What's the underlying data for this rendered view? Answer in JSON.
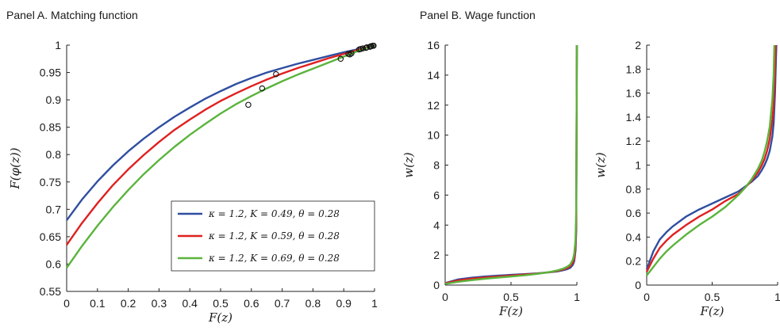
{
  "panels": {
    "a": {
      "title": "Panel A. Matching function"
    },
    "b": {
      "title": "Panel B. Wage function"
    }
  },
  "chart_data": [
    {
      "type": "line",
      "title": "Panel A. Matching function",
      "xlabel": "F(z)",
      "ylabel": "F(φ(z))",
      "xlim": [
        0,
        1
      ],
      "ylim": [
        0.55,
        1.0
      ],
      "xticks": [
        "0",
        "0.1",
        "0.2",
        "0.3",
        "0.4",
        "0.5",
        "0.6",
        "0.7",
        "0.8",
        "0.9",
        "1"
      ],
      "yticks": [
        "0.55",
        "0.6",
        "0.65",
        "0.7",
        "0.75",
        "0.8",
        "0.85",
        "0.9",
        "0.95",
        "1"
      ],
      "legend_position": "lower-right",
      "series": [
        {
          "name": "κ = 1.2, K = 0.49, θ = 0.28",
          "color": "#2f4ea0",
          "x": [
            0,
            0.05,
            0.1,
            0.15,
            0.2,
            0.25,
            0.3,
            0.35,
            0.4,
            0.45,
            0.5,
            0.55,
            0.6,
            0.65,
            0.7,
            0.75,
            0.8,
            0.85,
            0.9,
            0.95,
            1.0
          ],
          "y": [
            0.68,
            0.718,
            0.751,
            0.78,
            0.806,
            0.829,
            0.85,
            0.869,
            0.886,
            0.902,
            0.916,
            0.929,
            0.94,
            0.95,
            0.958,
            0.966,
            0.973,
            0.98,
            0.987,
            0.993,
            1.0
          ],
          "markers": [
            {
              "x": 0.68,
              "y": 0.947
            },
            {
              "x": 0.925,
              "y": 0.985
            },
            {
              "x": 0.955,
              "y": 0.993
            },
            {
              "x": 0.975,
              "y": 0.996
            },
            {
              "x": 0.99,
              "y": 0.998
            },
            {
              "x": 0.997,
              "y": 0.999
            }
          ]
        },
        {
          "name": "κ = 1.2, K = 0.59, θ = 0.28",
          "color": "#e02020",
          "x": [
            0,
            0.05,
            0.1,
            0.15,
            0.2,
            0.25,
            0.3,
            0.35,
            0.4,
            0.45,
            0.5,
            0.55,
            0.6,
            0.65,
            0.7,
            0.75,
            0.8,
            0.85,
            0.9,
            0.95,
            1.0
          ],
          "y": [
            0.635,
            0.675,
            0.711,
            0.744,
            0.773,
            0.799,
            0.823,
            0.845,
            0.864,
            0.882,
            0.898,
            0.912,
            0.925,
            0.937,
            0.948,
            0.958,
            0.967,
            0.976,
            0.984,
            0.992,
            1.0
          ],
          "markers": [
            {
              "x": 0.635,
              "y": 0.921
            },
            {
              "x": 0.915,
              "y": 0.984
            },
            {
              "x": 0.95,
              "y": 0.992
            },
            {
              "x": 0.972,
              "y": 0.995
            },
            {
              "x": 0.988,
              "y": 0.998
            },
            {
              "x": 0.996,
              "y": 0.999
            }
          ]
        },
        {
          "name": "κ = 1.2, K = 0.69, θ = 0.28",
          "color": "#5ab43c",
          "x": [
            0,
            0.05,
            0.1,
            0.15,
            0.2,
            0.25,
            0.3,
            0.35,
            0.4,
            0.45,
            0.5,
            0.55,
            0.6,
            0.65,
            0.7,
            0.75,
            0.8,
            0.85,
            0.9,
            0.95,
            1.0
          ],
          "y": [
            0.593,
            0.633,
            0.67,
            0.704,
            0.735,
            0.764,
            0.79,
            0.814,
            0.836,
            0.856,
            0.875,
            0.892,
            0.907,
            0.921,
            0.934,
            0.946,
            0.957,
            0.968,
            0.979,
            0.99,
            1.0
          ],
          "markers": [
            {
              "x": 0.59,
              "y": 0.891
            },
            {
              "x": 0.89,
              "y": 0.975
            },
            {
              "x": 0.92,
              "y": 0.983
            },
            {
              "x": 0.962,
              "y": 0.994
            },
            {
              "x": 0.985,
              "y": 0.997
            },
            {
              "x": 0.995,
              "y": 0.999
            }
          ]
        }
      ]
    },
    {
      "type": "line",
      "title": "Panel B. Wage function",
      "xlabel": "F(z)",
      "ylabel": "w(z)",
      "xlim": [
        0,
        1
      ],
      "ylim": [
        0,
        16
      ],
      "xticks": [
        "0",
        "0.5",
        "1"
      ],
      "yticks": [
        "0",
        "2",
        "4",
        "6",
        "8",
        "10",
        "12",
        "14",
        "16"
      ],
      "series": [
        {
          "color": "#2f4ea0",
          "x": [
            0,
            0.1,
            0.2,
            0.3,
            0.4,
            0.5,
            0.6,
            0.7,
            0.8,
            0.85,
            0.9,
            0.93,
            0.95,
            0.97,
            0.98,
            0.99,
            0.995,
            1.0
          ],
          "y": [
            0.13,
            0.38,
            0.49,
            0.57,
            0.63,
            0.68,
            0.73,
            0.78,
            0.86,
            0.91,
            1.0,
            1.07,
            1.15,
            1.35,
            1.6,
            2.3,
            3.6,
            16
          ]
        },
        {
          "color": "#e02020",
          "x": [
            0,
            0.1,
            0.2,
            0.3,
            0.4,
            0.5,
            0.6,
            0.7,
            0.8,
            0.85,
            0.9,
            0.93,
            0.95,
            0.97,
            0.98,
            0.99,
            0.995,
            1.0
          ],
          "y": [
            0.11,
            0.31,
            0.42,
            0.5,
            0.57,
            0.63,
            0.7,
            0.76,
            0.87,
            0.94,
            1.05,
            1.15,
            1.26,
            1.5,
            1.8,
            2.6,
            4.2,
            16
          ]
        },
        {
          "color": "#5ab43c",
          "x": [
            0,
            0.1,
            0.2,
            0.3,
            0.4,
            0.5,
            0.6,
            0.7,
            0.8,
            0.85,
            0.9,
            0.93,
            0.95,
            0.97,
            0.98,
            0.99,
            0.995,
            1.0
          ],
          "y": [
            0.08,
            0.22,
            0.33,
            0.42,
            0.5,
            0.57,
            0.65,
            0.75,
            0.88,
            0.97,
            1.11,
            1.24,
            1.38,
            1.7,
            2.1,
            3.0,
            5.0,
            16
          ]
        }
      ]
    },
    {
      "type": "line",
      "title": "",
      "xlabel": "F(z)",
      "ylabel": "w(z)",
      "xlim": [
        0,
        1
      ],
      "ylim": [
        0,
        2
      ],
      "xticks": [
        "0",
        "0.5",
        "1"
      ],
      "yticks": [
        "0",
        "0.2",
        "0.4",
        "0.6",
        "0.8",
        "1",
        "1.2",
        "1.4",
        "1.6",
        "1.8",
        "2"
      ],
      "series": [
        {
          "color": "#2f4ea0",
          "x": [
            0,
            0.05,
            0.1,
            0.15,
            0.2,
            0.3,
            0.4,
            0.5,
            0.6,
            0.7,
            0.75,
            0.8,
            0.85,
            0.88,
            0.9,
            0.92,
            0.94,
            0.96,
            0.97,
            0.98,
            0.99
          ],
          "y": [
            0.13,
            0.28,
            0.38,
            0.44,
            0.49,
            0.57,
            0.63,
            0.68,
            0.73,
            0.78,
            0.82,
            0.86,
            0.91,
            0.96,
            1.0,
            1.05,
            1.12,
            1.24,
            1.35,
            1.6,
            2.0
          ]
        },
        {
          "color": "#e02020",
          "x": [
            0,
            0.05,
            0.1,
            0.15,
            0.2,
            0.3,
            0.4,
            0.5,
            0.6,
            0.7,
            0.75,
            0.8,
            0.85,
            0.88,
            0.9,
            0.92,
            0.94,
            0.96,
            0.97,
            0.98,
            0.985
          ],
          "y": [
            0.11,
            0.22,
            0.31,
            0.37,
            0.42,
            0.5,
            0.57,
            0.63,
            0.7,
            0.76,
            0.81,
            0.87,
            0.94,
            1.0,
            1.05,
            1.12,
            1.22,
            1.38,
            1.5,
            1.8,
            2.0
          ]
        },
        {
          "color": "#5ab43c",
          "x": [
            0,
            0.05,
            0.1,
            0.15,
            0.2,
            0.3,
            0.4,
            0.5,
            0.6,
            0.7,
            0.75,
            0.8,
            0.85,
            0.88,
            0.9,
            0.92,
            0.94,
            0.96,
            0.97,
            0.975
          ],
          "y": [
            0.08,
            0.15,
            0.22,
            0.28,
            0.33,
            0.42,
            0.5,
            0.57,
            0.65,
            0.75,
            0.81,
            0.88,
            0.97,
            1.04,
            1.11,
            1.2,
            1.32,
            1.55,
            1.75,
            2.0
          ]
        }
      ]
    }
  ]
}
